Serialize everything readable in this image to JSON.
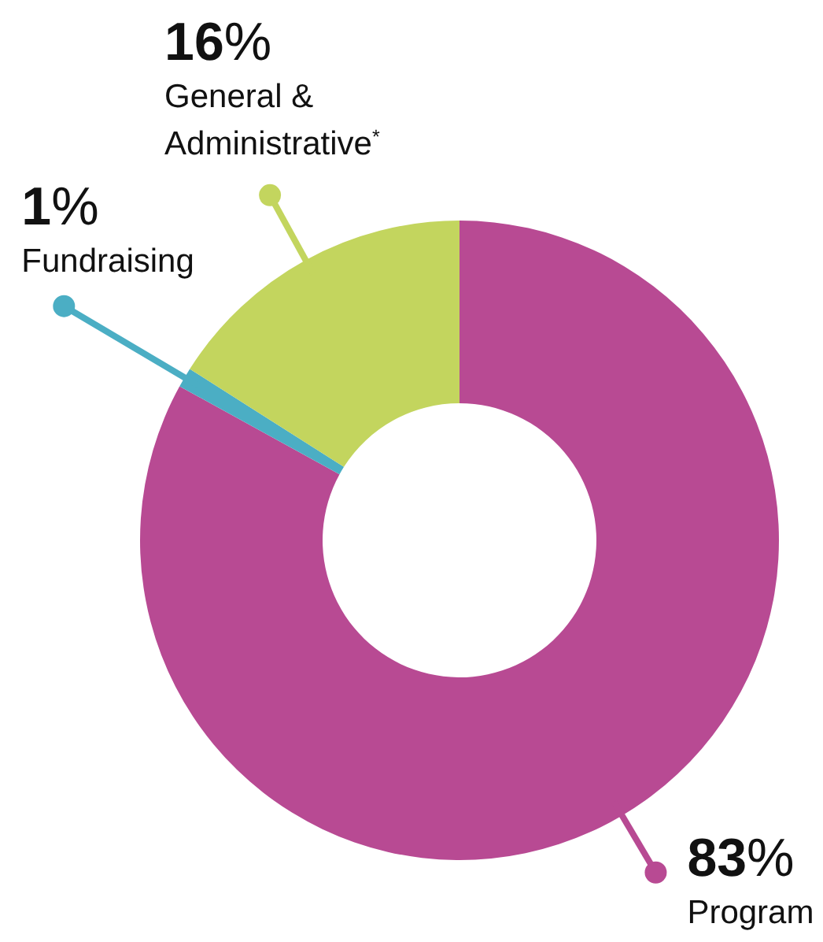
{
  "chart_data": {
    "type": "donut",
    "categories": [
      "Program",
      "Fundraising",
      "General & Administrative$^{*}$"
    ],
    "values": [
      83,
      1,
      16
    ],
    "value_labels": [
      "83%",
      "1%",
      "16%"
    ],
    "colors": [
      "#b84a93",
      "#4baec4",
      "#c3d55e"
    ]
  }
}
